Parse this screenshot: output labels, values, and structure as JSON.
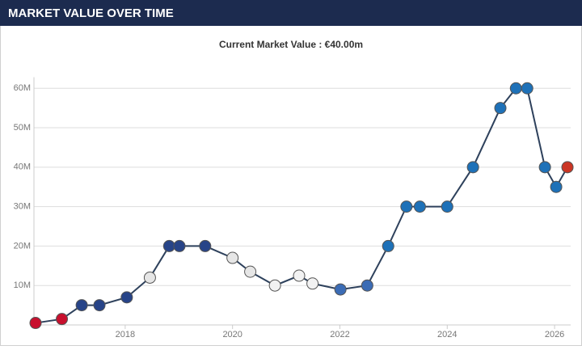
{
  "chart_data": {
    "type": "line",
    "title": "MARKET VALUE OVER TIME",
    "subtitle": "Current Market Value : €40.00m",
    "x": [
      2016.33,
      2016.82,
      2017.19,
      2017.52,
      2018.03,
      2018.46,
      2018.82,
      2019.01,
      2019.49,
      2020.0,
      2020.33,
      2020.79,
      2021.24,
      2021.49,
      2022.01,
      2022.51,
      2022.9,
      2023.24,
      2023.49,
      2024.0,
      2024.48,
      2024.99,
      2025.28,
      2025.49,
      2025.82,
      2026.03,
      2026.24
    ],
    "values": [
      0.5,
      1.5,
      5,
      5,
      7,
      12,
      20,
      20,
      20,
      17,
      13.5,
      10,
      12.5,
      10.5,
      9,
      10,
      20,
      30,
      30,
      30,
      40,
      55,
      60,
      60,
      40,
      35,
      40
    ],
    "color": "#2e415c",
    "point_colors": [
      "#c8102e",
      "#c8102e",
      "#274488",
      "#274488",
      "#274488",
      "#e6e6e6",
      "#274488",
      "#274488",
      "#274488",
      "#e6e6e6",
      "#e6e6e6",
      "#f2f2f2",
      "#f2f2f2",
      "#f2f2f2",
      "#3b6cb5",
      "#3b6cb5",
      "#1e71b8",
      "#1e71b8",
      "#1e71b8",
      "#1e71b8",
      "#1e71b8",
      "#1e71b8",
      "#1e71b8",
      "#1e71b8",
      "#1e71b8",
      "#1e71b8",
      "#cb3524"
    ],
    "xlim": [
      2016.3,
      2026.3
    ],
    "ylim": [
      0,
      62
    ],
    "xticks": [
      2018,
      2020,
      2022,
      2024,
      2026
    ],
    "yticks": [
      {
        "value": 10,
        "label": "10M"
      },
      {
        "value": 20,
        "label": "20M"
      },
      {
        "value": 30,
        "label": "30M"
      },
      {
        "value": 40,
        "label": "40M"
      },
      {
        "value": 50,
        "label": "50M"
      },
      {
        "value": 60,
        "label": "60M"
      }
    ],
    "grid": true
  }
}
